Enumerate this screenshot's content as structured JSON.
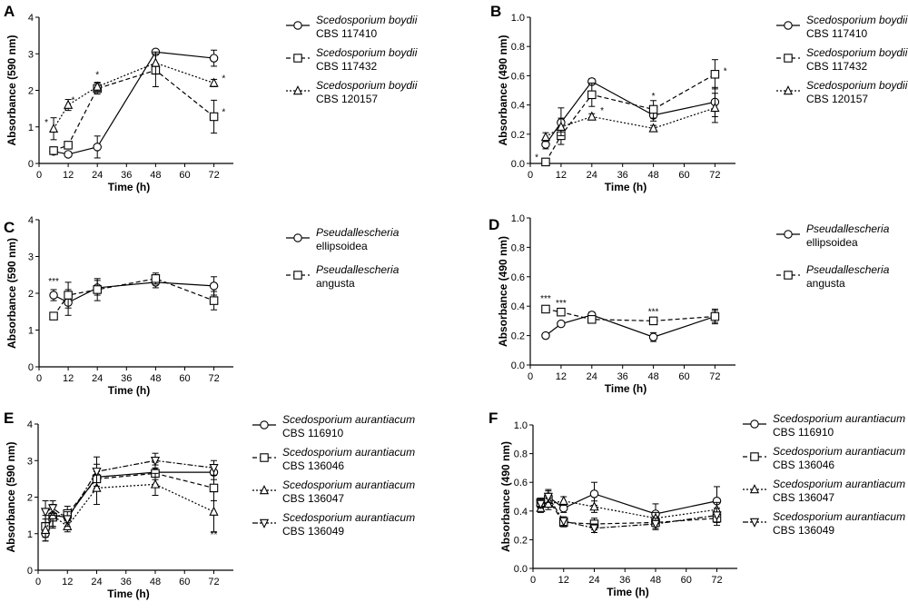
{
  "chart_data": [
    {
      "panel": "A",
      "type": "line",
      "ylabel": "Absorbance (590 nm)",
      "xlabel": "Time (h)",
      "ylim": [
        0,
        4
      ],
      "yticks": [
        "0",
        "1",
        "2",
        "3",
        "4"
      ],
      "xlim": [
        0,
        80
      ],
      "xticks": [
        "0",
        "12",
        "24",
        "36",
        "48",
        "60",
        "72"
      ],
      "series": [
        {
          "name": "Scedosporium boydii",
          "id": "CBS 117410",
          "marker": "circle",
          "line": "solid",
          "x": [
            6,
            12,
            24,
            48,
            72
          ],
          "y": [
            0.33,
            0.25,
            0.45,
            3.05,
            2.88
          ],
          "err": [
            0.08,
            0.07,
            0.3,
            0.05,
            0.22
          ]
        },
        {
          "name": "Scedosporium boydii",
          "id": "CBS 117432",
          "marker": "square",
          "line": "dashed",
          "x": [
            6,
            12,
            24,
            48,
            72
          ],
          "y": [
            0.35,
            0.5,
            2.05,
            2.55,
            1.28
          ],
          "err": [
            0.1,
            0.08,
            0.15,
            0.45,
            0.45
          ]
        },
        {
          "name": "Scedosporium boydii",
          "id": "CBS 120157",
          "marker": "triangle",
          "line": "dotted",
          "x": [
            6,
            12,
            24,
            48,
            72
          ],
          "y": [
            0.95,
            1.6,
            2.1,
            2.75,
            2.2
          ],
          "err": [
            0.3,
            0.15,
            0.12,
            0.3,
            0.1
          ]
        }
      ],
      "annotations": [
        {
          "text": "*",
          "x": 3,
          "y": 1.0
        },
        {
          "text": "*",
          "x": 14,
          "y": 1.6
        },
        {
          "text": "*",
          "x": 24,
          "y": 2.3
        },
        {
          "text": "*",
          "x": 76,
          "y": 2.2
        },
        {
          "text": "*",
          "x": 76,
          "y": 1.28
        }
      ]
    },
    {
      "panel": "B",
      "type": "line",
      "ylabel": "Absorbance (490 nm)",
      "xlabel": "Time (h)",
      "ylim": [
        0,
        1
      ],
      "yticks": [
        "0.0",
        "0.2",
        "0.4",
        "0.6",
        "0.8",
        "1.0"
      ],
      "xlim": [
        0,
        80
      ],
      "xticks": [
        "0",
        "12",
        "24",
        "36",
        "48",
        "60",
        "72"
      ],
      "series": [
        {
          "name": "Scedosporium boydii",
          "id": "CBS 117410",
          "marker": "circle",
          "line": "solid",
          "x": [
            6,
            12,
            24,
            48,
            72
          ],
          "y": [
            0.13,
            0.28,
            0.56,
            0.33,
            0.42
          ],
          "err": [
            0.03,
            0.1,
            0.02,
            0.04,
            0.1
          ]
        },
        {
          "name": "Scedosporium boydii",
          "id": "CBS 117432",
          "marker": "square",
          "line": "dashed",
          "x": [
            6,
            12,
            24,
            48,
            72
          ],
          "y": [
            0.01,
            0.19,
            0.47,
            0.37,
            0.61
          ],
          "err": [
            0.01,
            0.06,
            0.08,
            0.06,
            0.1
          ]
        },
        {
          "name": "Scedosporium boydii",
          "id": "CBS 120157",
          "marker": "triangle",
          "line": "dotted",
          "x": [
            6,
            12,
            24,
            48,
            72
          ],
          "y": [
            0.18,
            0.25,
            0.32,
            0.24,
            0.38
          ],
          "err": [
            0.03,
            0.06,
            0.02,
            0.02,
            0.1
          ]
        }
      ],
      "annotations": [
        {
          "text": "*",
          "x": 2.5,
          "y": 0.01
        },
        {
          "text": "*",
          "x": 28,
          "y": 0.33
        },
        {
          "text": "*",
          "x": 48,
          "y": 0.43
        },
        {
          "text": "*",
          "x": 76,
          "y": 0.6
        }
      ]
    },
    {
      "panel": "C",
      "type": "line",
      "ylabel": "Absorbance (590 nm)",
      "xlabel": "Time (h)",
      "ylim": [
        0,
        4
      ],
      "yticks": [
        "0",
        "1",
        "2",
        "3",
        "4"
      ],
      "xlim": [
        0,
        80
      ],
      "xticks": [
        "0",
        "12",
        "24",
        "36",
        "48",
        "60",
        "72"
      ],
      "series": [
        {
          "name": "Pseudallescheria",
          "id": "ellipsoidea",
          "marker": "circle",
          "line": "solid",
          "x": [
            6,
            12,
            24,
            48,
            72
          ],
          "y": [
            1.95,
            1.75,
            2.15,
            2.3,
            2.2
          ],
          "err": [
            0.15,
            0.35,
            0.2,
            0.15,
            0.25
          ]
        },
        {
          "name": "Pseudallescheria",
          "id": "angusta",
          "marker": "square",
          "line": "dashed",
          "x": [
            6,
            12,
            24,
            48,
            72
          ],
          "y": [
            1.38,
            1.95,
            2.1,
            2.4,
            1.8
          ],
          "err": [
            0.05,
            0.35,
            0.3,
            0.15,
            0.25
          ]
        }
      ],
      "annotations": [
        {
          "text": "***",
          "x": 6,
          "y": 2.2
        }
      ]
    },
    {
      "panel": "D",
      "type": "line",
      "ylabel": "Absorbance (490 nm)",
      "xlabel": "Time (h)",
      "ylim": [
        0,
        1
      ],
      "yticks": [
        "0.0",
        "0.2",
        "0.4",
        "0.6",
        "0.8",
        "1.0"
      ],
      "xlim": [
        0,
        80
      ],
      "xticks": [
        "0",
        "12",
        "24",
        "36",
        "48",
        "60",
        "72"
      ],
      "series": [
        {
          "name": "Pseudallescheria",
          "id": "ellipsoidea",
          "marker": "circle",
          "line": "solid",
          "x": [
            6,
            12,
            24,
            48,
            72
          ],
          "y": [
            0.2,
            0.28,
            0.34,
            0.19,
            0.33
          ],
          "err": [
            0.01,
            0.01,
            0.02,
            0.03,
            0.05
          ]
        },
        {
          "name": "Pseudallescheria",
          "id": "angusta",
          "marker": "square",
          "line": "dashed",
          "x": [
            6,
            12,
            24,
            48,
            72
          ],
          "y": [
            0.38,
            0.36,
            0.31,
            0.3,
            0.33
          ],
          "err": [
            0.01,
            0.02,
            0.02,
            0.01,
            0.04
          ]
        }
      ],
      "annotations": [
        {
          "text": "***",
          "x": 6,
          "y": 0.42
        },
        {
          "text": "***",
          "x": 12,
          "y": 0.39
        },
        {
          "text": "***",
          "x": 48,
          "y": 0.33
        }
      ]
    },
    {
      "panel": "E",
      "type": "line",
      "ylabel": "Absorbance (590 nm)",
      "xlabel": "Time (h)",
      "ylim": [
        0,
        4
      ],
      "yticks": [
        "0",
        "1",
        "2",
        "3",
        "4"
      ],
      "xlim": [
        0,
        80
      ],
      "xticks": [
        "0",
        "12",
        "24",
        "36",
        "48",
        "60",
        "72"
      ],
      "series": [
        {
          "name": "Scedosporium aurantiacum",
          "id": "CBS 116910",
          "marker": "circle",
          "line": "solid",
          "x": [
            3,
            6,
            12,
            24,
            48,
            72
          ],
          "y": [
            1.0,
            1.5,
            1.45,
            2.55,
            2.68,
            2.68
          ],
          "err": [
            0.2,
            0.3,
            0.15,
            0.35,
            0.2,
            0.2
          ]
        },
        {
          "name": "Scedosporium aurantiacum",
          "id": "CBS 136046",
          "marker": "square",
          "line": "dashed",
          "x": [
            3,
            6,
            12,
            24,
            48,
            72
          ],
          "y": [
            1.2,
            1.45,
            1.55,
            2.5,
            2.65,
            2.25
          ],
          "err": [
            0.3,
            0.3,
            0.2,
            0.25,
            0.3,
            0.35
          ]
        },
        {
          "name": "Scedosporium aurantiacum",
          "id": "CBS 136047",
          "marker": "triangle",
          "line": "dotted",
          "x": [
            3,
            6,
            12,
            24,
            48,
            72
          ],
          "y": [
            1.1,
            1.5,
            1.2,
            2.25,
            2.35,
            1.6
          ],
          "err": [
            0.3,
            0.3,
            0.15,
            0.45,
            0.3,
            0.55
          ]
        },
        {
          "name": "Scedosporium aurantiacum",
          "id": "CBS 136049",
          "marker": "triangle-down",
          "line": "dashdot",
          "x": [
            3,
            6,
            12,
            24,
            48,
            72
          ],
          "y": [
            1.6,
            1.7,
            1.4,
            2.7,
            3.0,
            2.8
          ],
          "err": [
            0.3,
            0.2,
            0.2,
            0.4,
            0.2,
            0.2
          ]
        }
      ],
      "annotations": [
        {
          "text": "**",
          "x": 72,
          "y": 0.85
        }
      ]
    },
    {
      "panel": "F",
      "type": "line",
      "ylabel": "Absorbance (490 nm)",
      "xlabel": "Time (h)",
      "ylim": [
        0,
        1
      ],
      "yticks": [
        "0.0",
        "0.2",
        "0.4",
        "0.6",
        "0.8",
        "1.0"
      ],
      "xlim": [
        0,
        80
      ],
      "xticks": [
        "0",
        "12",
        "24",
        "36",
        "48",
        "60",
        "72"
      ],
      "series": [
        {
          "name": "Scedosporium aurantiacum",
          "id": "CBS 116910",
          "marker": "circle",
          "line": "solid",
          "x": [
            3,
            6,
            12,
            24,
            48,
            72
          ],
          "y": [
            0.44,
            0.5,
            0.42,
            0.52,
            0.38,
            0.47
          ],
          "err": [
            0.03,
            0.05,
            0.03,
            0.08,
            0.07,
            0.1
          ]
        },
        {
          "name": "Scedosporium aurantiacum",
          "id": "CBS 136046",
          "marker": "square",
          "line": "dashed",
          "x": [
            3,
            6,
            12,
            24,
            48,
            72
          ],
          "y": [
            0.46,
            0.48,
            0.32,
            0.31,
            0.32,
            0.35
          ],
          "err": [
            0.03,
            0.04,
            0.03,
            0.04,
            0.04,
            0.05
          ]
        },
        {
          "name": "Scedosporium aurantiacum",
          "id": "CBS 136047",
          "marker": "triangle",
          "line": "dotted",
          "x": [
            3,
            6,
            12,
            24,
            48,
            72
          ],
          "y": [
            0.42,
            0.45,
            0.47,
            0.43,
            0.35,
            0.41
          ],
          "err": [
            0.03,
            0.04,
            0.03,
            0.04,
            0.04,
            0.05
          ]
        },
        {
          "name": "Scedosporium aurantiacum",
          "id": "CBS 136049",
          "marker": "triangle-down",
          "line": "dashdot",
          "x": [
            3,
            6,
            12,
            24,
            48,
            72
          ],
          "y": [
            0.45,
            0.5,
            0.33,
            0.28,
            0.31,
            0.37
          ],
          "err": [
            0.03,
            0.04,
            0.03,
            0.03,
            0.04,
            0.05
          ]
        }
      ],
      "annotations": []
    }
  ]
}
